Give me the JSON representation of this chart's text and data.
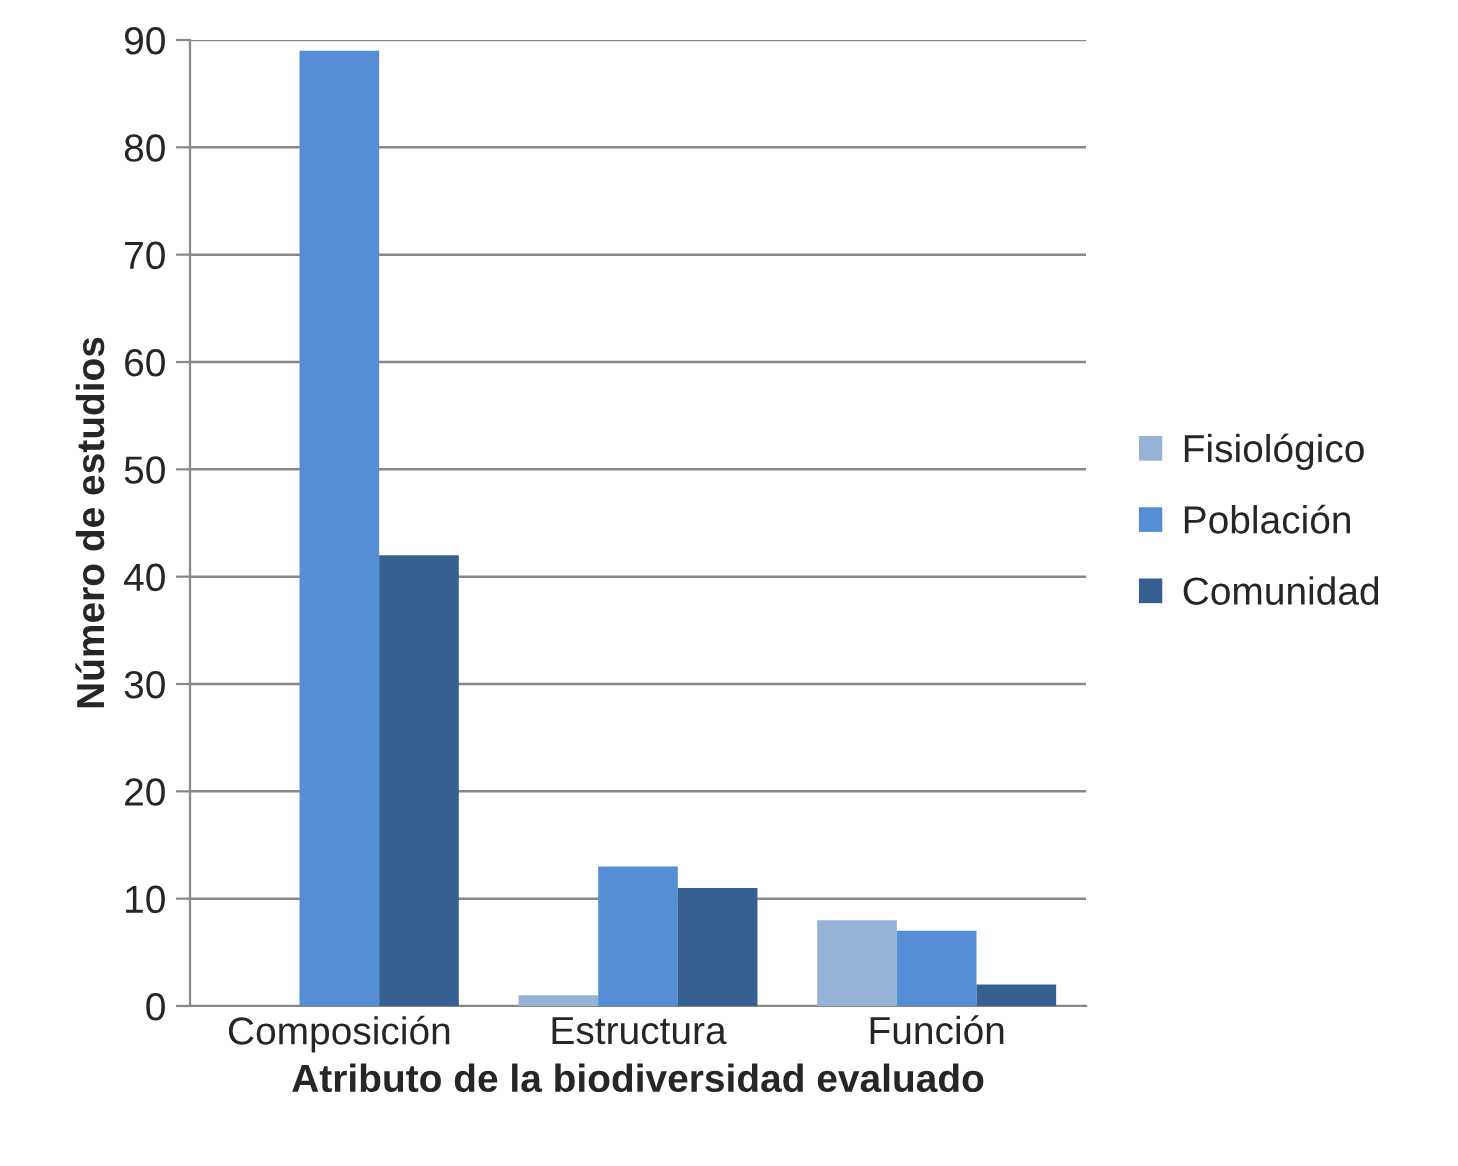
{
  "chart_data": {
    "type": "bar",
    "xlabel": "Atributo de la biodiversidad evaluado",
    "ylabel": "Número de estudios",
    "categories": [
      "Composición",
      "Estructura",
      "Función"
    ],
    "series": [
      {
        "name": "Fisiológico",
        "color": "#95b3d7",
        "values": [
          0,
          1,
          8
        ]
      },
      {
        "name": "Población",
        "color": "#558ed5",
        "values": [
          89,
          13,
          7
        ]
      },
      {
        "name": "Comunidad",
        "color": "#376092",
        "values": [
          42,
          11,
          2
        ]
      }
    ],
    "ylim": [
      0,
      90
    ],
    "yticks": [
      0,
      10,
      20,
      30,
      40,
      50,
      60,
      70,
      80,
      90
    ],
    "grid": "y",
    "legend": "right"
  }
}
